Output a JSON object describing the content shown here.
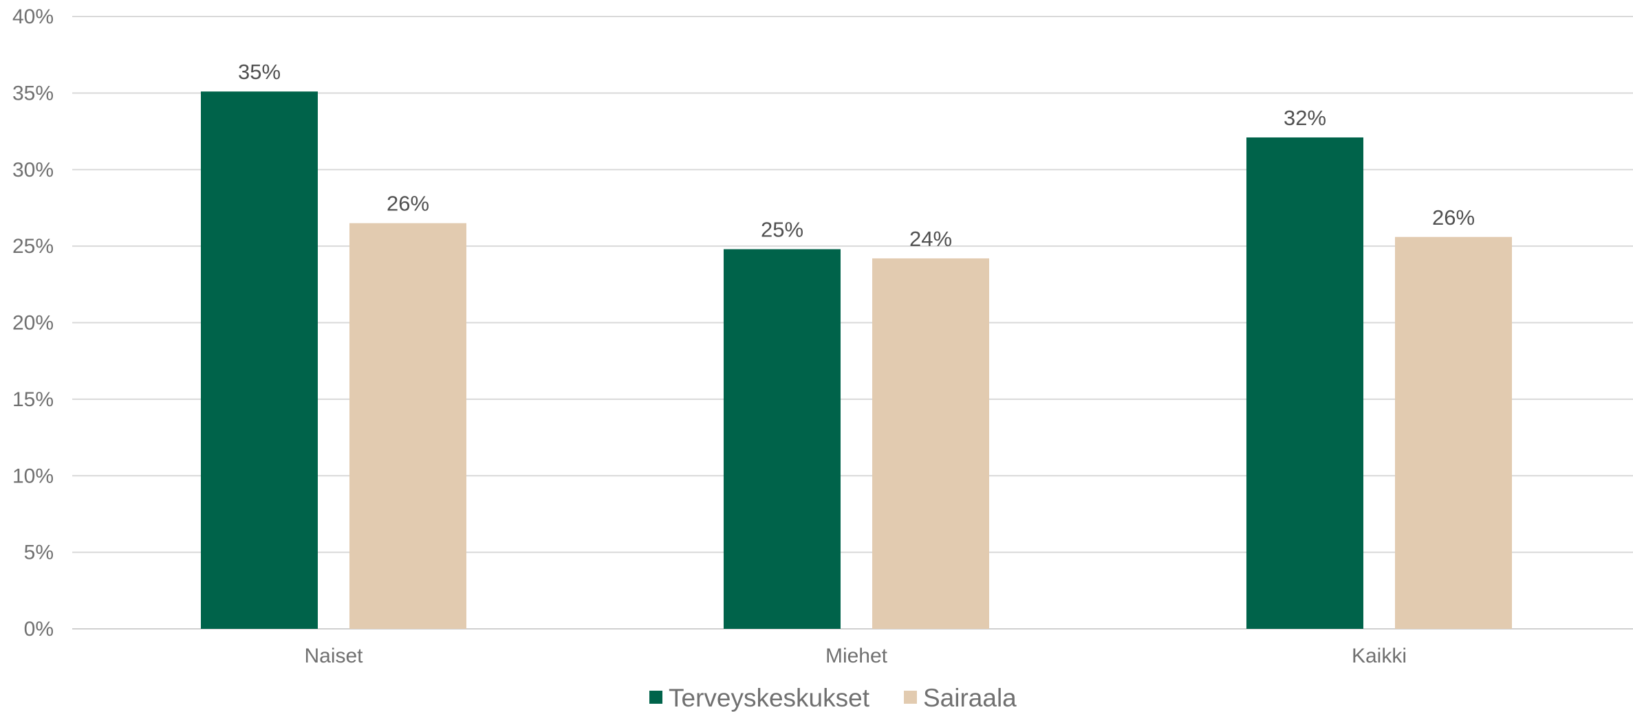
{
  "chart_data": {
    "type": "bar",
    "title": "",
    "xlabel": "",
    "ylabel": "",
    "categories": [
      "Naiset",
      "Miehet",
      "Kaikki"
    ],
    "series": [
      {
        "name": "Terveyskeskukset",
        "values": [
          35,
          25,
          32
        ],
        "labels": [
          "35%",
          "25%",
          "32%"
        ],
        "color": "#00634a"
      },
      {
        "name": "Sairaala",
        "values": [
          26,
          24,
          26
        ],
        "labels": [
          "26%",
          "24%",
          "26%"
        ],
        "color": "#e2cbb0"
      }
    ],
    "bar_heights_estimate": [
      [
        35.1,
        24.8,
        32.1
      ],
      [
        26.5,
        24.2,
        25.6
      ]
    ],
    "ylim": [
      0,
      40
    ],
    "yticks": [
      0,
      5,
      10,
      15,
      20,
      25,
      30,
      35,
      40
    ],
    "ytick_labels": [
      "0%",
      "5%",
      "10%",
      "15%",
      "20%",
      "25%",
      "30%",
      "35%",
      "40%"
    ],
    "grid": true,
    "legend_position": "bottom"
  }
}
